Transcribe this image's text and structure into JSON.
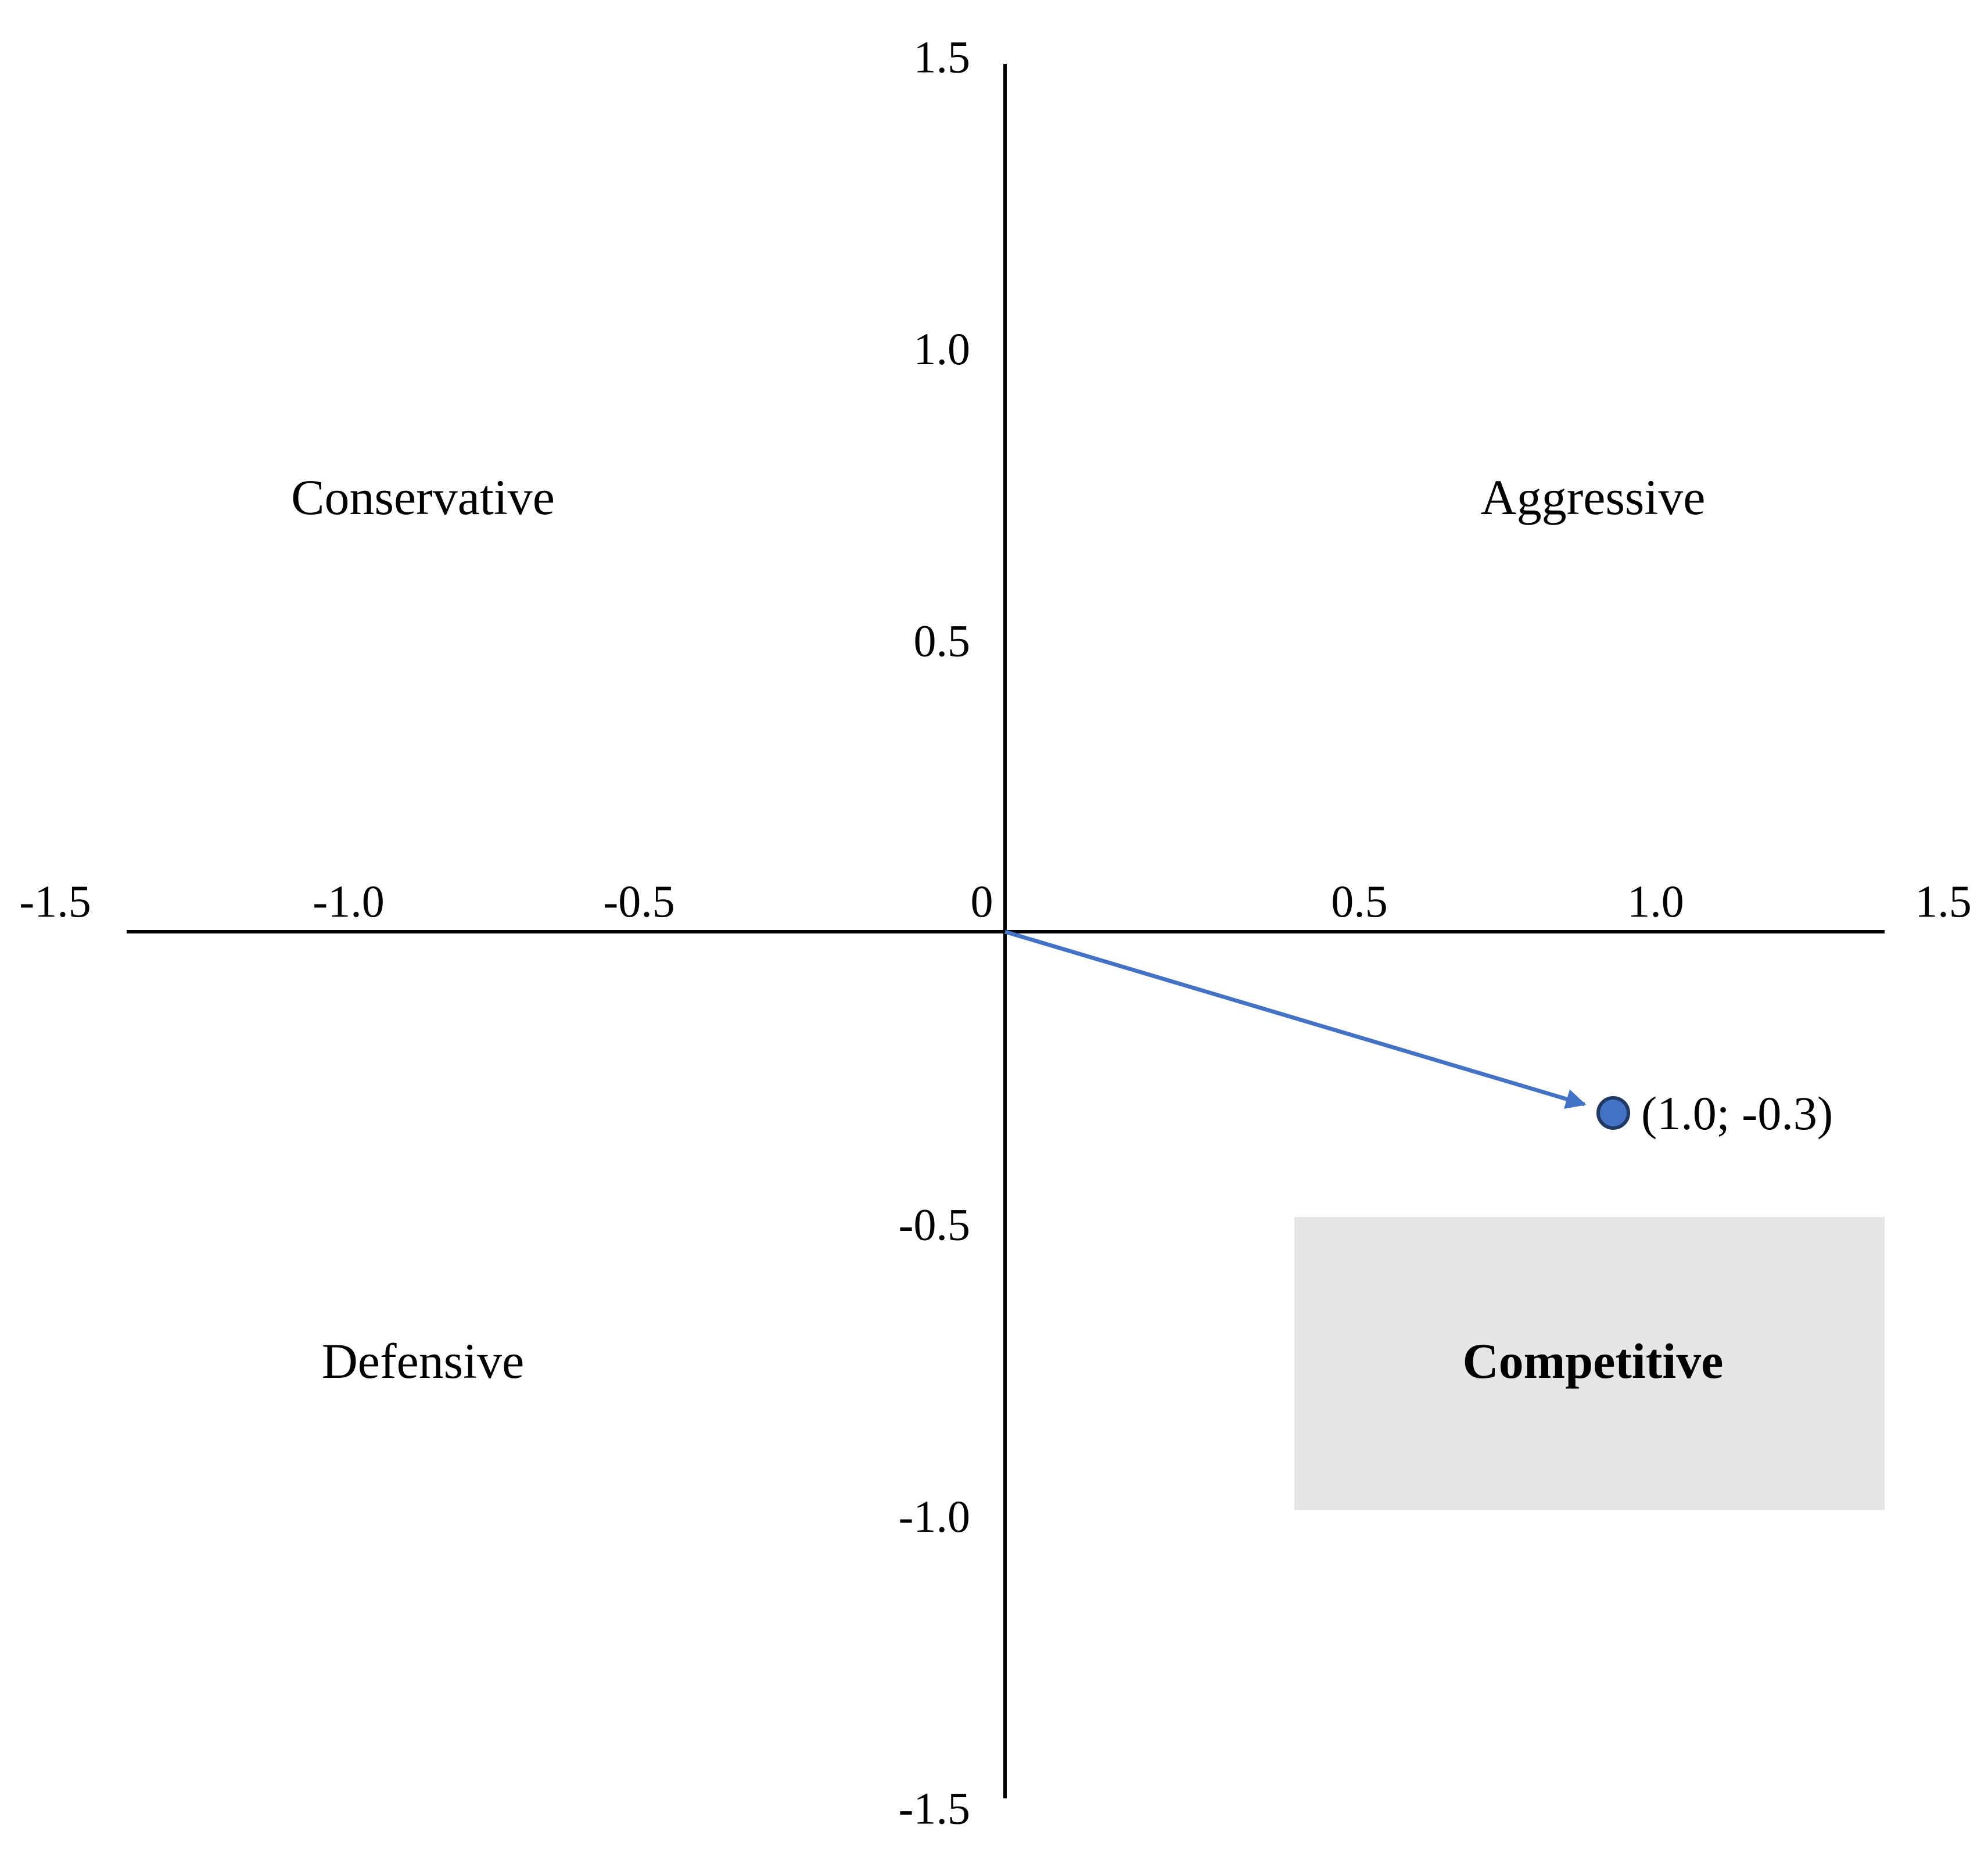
{
  "chart_data": {
    "type": "scatter",
    "title": "",
    "xlabel": "",
    "ylabel": "",
    "xlim": [
      -1.5,
      1.5
    ],
    "ylim": [
      -1.5,
      1.5
    ],
    "grid": false,
    "x_ticks": [
      {
        "value": -1.5,
        "label": "-1.5"
      },
      {
        "value": -1.0,
        "label": "-1.0"
      },
      {
        "value": -0.5,
        "label": "-0.5"
      },
      {
        "value": 0,
        "label": "0"
      },
      {
        "value": 0.5,
        "label": "0.5"
      },
      {
        "value": 1.0,
        "label": "1.0"
      },
      {
        "value": 1.5,
        "label": "1.5"
      }
    ],
    "y_ticks": [
      {
        "value": 1.5,
        "label": "1.5"
      },
      {
        "value": 1.0,
        "label": "1.0"
      },
      {
        "value": 0.5,
        "label": "0.5"
      },
      {
        "value": -0.5,
        "label": "-0.5"
      },
      {
        "value": -1.0,
        "label": "-1.0"
      },
      {
        "value": -1.5,
        "label": "-1.5"
      }
    ],
    "quadrants": [
      {
        "label": "Conservative",
        "position": "top-left",
        "highlighted": false
      },
      {
        "label": "Aggressive",
        "position": "top-right",
        "highlighted": false
      },
      {
        "label": "Defensive",
        "position": "bottom-left",
        "highlighted": false
      },
      {
        "label": "Competitive",
        "position": "bottom-right",
        "highlighted": true
      }
    ],
    "points": [
      {
        "x": 1.0,
        "y": -0.3,
        "label": "(1.0; -0.3)"
      }
    ],
    "vector": {
      "from": [
        0,
        0
      ],
      "to": [
        1.0,
        -0.3
      ]
    },
    "colors": {
      "axes": "#000000",
      "point_fill": "#4472C4",
      "point_stroke": "#1F3864",
      "arrow": "#4472C4",
      "highlight_box": "#E6E6E6"
    }
  }
}
